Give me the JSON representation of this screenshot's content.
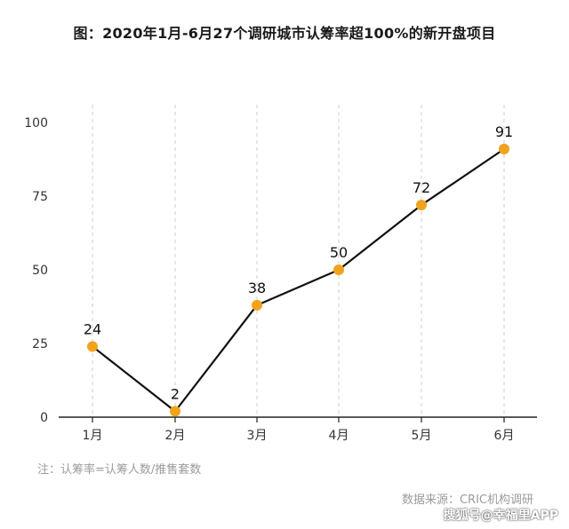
{
  "chart_data": {
    "type": "line",
    "title": "图：2020年1月-6月27个调研城市认筹率超100%的新开盘项目",
    "categories": [
      "1月",
      "2月",
      "3月",
      "4月",
      "5月",
      "6月"
    ],
    "values": [
      24,
      2,
      38,
      50,
      72,
      91
    ],
    "ylim": [
      0,
      100
    ],
    "yticks": [
      0,
      25,
      50,
      75,
      100
    ],
    "grid": "vertical dashed",
    "line_color": "#111111",
    "marker_color": "#F0A31C",
    "data_labels": true
  },
  "note": "注：认筹率=认筹人数/推售套数",
  "source": "数据来源：CRIC机构调研",
  "watermark": "搜狐号@幸福里APP"
}
